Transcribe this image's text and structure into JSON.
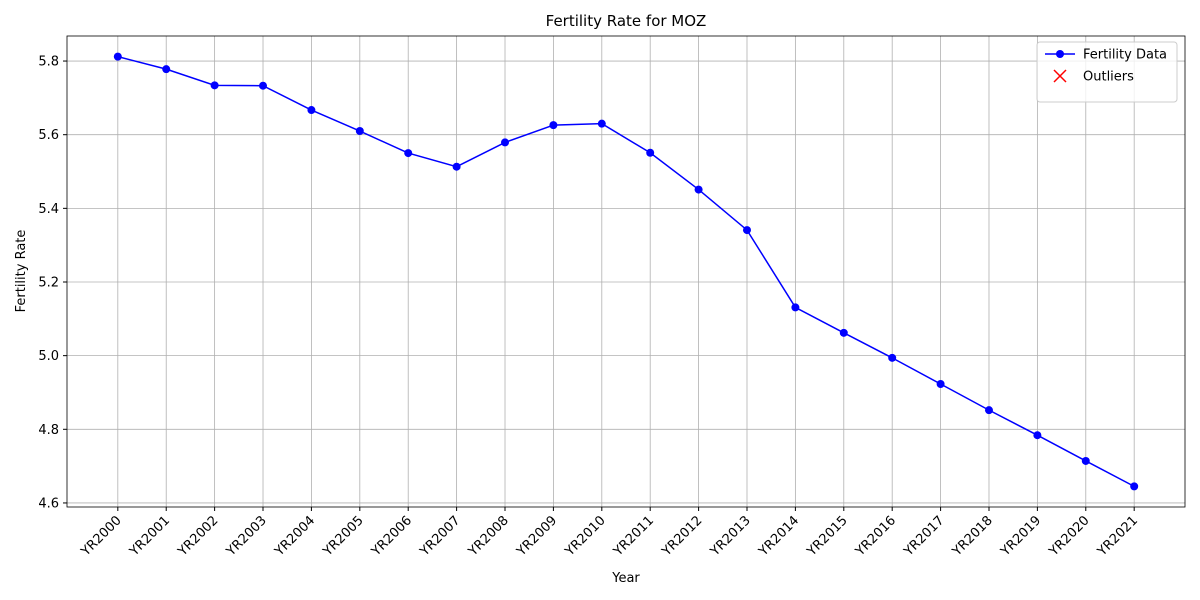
{
  "chart_data": {
    "type": "line",
    "title": "Fertility Rate for MOZ",
    "x_label": "Year",
    "y_label": "Fertility Rate",
    "categories": [
      "YR2000",
      "YR2001",
      "YR2002",
      "YR2003",
      "YR2004",
      "YR2005",
      "YR2006",
      "YR2007",
      "YR2008",
      "YR2009",
      "YR2010",
      "YR2011",
      "YR2012",
      "YR2013",
      "YR2014",
      "YR2015",
      "YR2016",
      "YR2017",
      "YR2018",
      "YR2019",
      "YR2020",
      "YR2021"
    ],
    "series": [
      {
        "name": "Fertility Data",
        "color": "#0000ff",
        "marker": "o",
        "values": [
          5.812,
          5.778,
          5.734,
          5.733,
          5.667,
          5.61,
          5.55,
          5.513,
          5.579,
          5.626,
          5.63,
          5.551,
          5.451,
          5.341,
          5.131,
          5.062,
          4.994,
          4.923,
          4.852,
          4.784,
          4.714,
          4.645
        ]
      },
      {
        "name": "Outliers",
        "color": "#ff0000",
        "marker": "x",
        "values": [
          null,
          null,
          null,
          null,
          null,
          null,
          null,
          null,
          null,
          null,
          null,
          null,
          null,
          null,
          null,
          null,
          null,
          null,
          null,
          null,
          null,
          null
        ]
      }
    ],
    "ylim": [
      4.589,
      5.868
    ],
    "yticks": [
      4.6,
      4.8,
      {
        "value": 5,
        "label": "5.0"
      },
      5.2,
      5.4,
      5.6,
      5.8
    ],
    "grid": true,
    "legend": "upper right"
  }
}
